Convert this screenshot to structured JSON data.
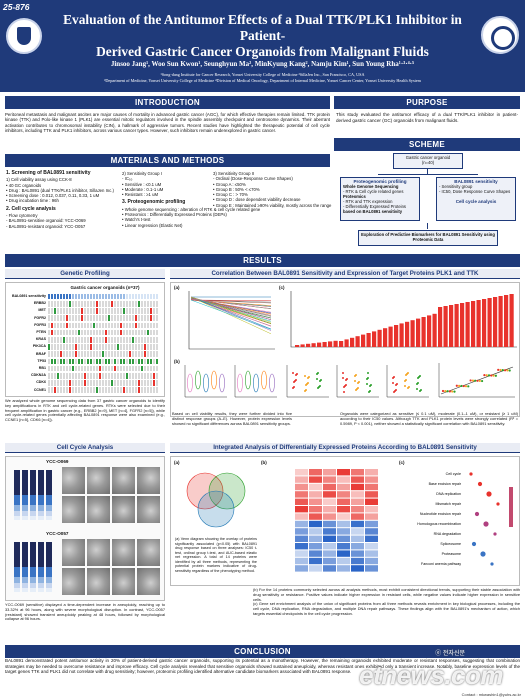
{
  "header": {
    "poster_id": "25-876",
    "title_line1": "Evaluation of the Antitumor Effects of a Dual TTK/PLK1 Inhibitor in Patient-",
    "title_line2": "Derived Gastric Cancer Organoids from Malignant Fluids",
    "authors": "Jinsoo Jang¹, Woo Sun Kwon¹, Seunghyun Ma², MinKyung Kang², Namju Kim¹, Sun Young Rha¹·³·⁴·⁵",
    "affil_line1": "¹Song-dang Institute for Cancer Research, Yonsei University College of Medicine ²SillaJen Inc., San Francisco, CA, USA",
    "affil_line2": "³Department of Medicine, Yonsei University College of Medicine ⁴Division of Medical Oncology, Department of Internal Medicine, Yonsei Cancer Center, Yonsei University Health System"
  },
  "sections": {
    "introduction": "INTRODUCTION",
    "purpose": "PURPOSE",
    "scheme": "SCHEME",
    "methods": "MATERIALS AND METHODS",
    "results": "RESULTS",
    "conclusion": "CONCLUSION"
  },
  "introduction_text": "Peritoneal metastasis and malignant ascites are major causes of mortality in advanced gastric cancer (AGC), for which effective therapies remain limited. TTK protein kinase (TTK) and Polo-like kinase 1 (PLK1) are essential mitotic regulators involved in the spindle assembly checkpoint and centrosome dynamics. Their aberrant activation contributes to chromosomal instability (CIN), a hallmark of aggressive tumors. Recent studies have highlighted the therapeutic potential of cell cycle inhibitors, including TTK and PLK1 inhibitors, across various cancer types. However, such inhibitors remain underexplored in gastric cancer.",
  "purpose_text": "This study evaluated the antitumor efficacy of a dual TTK/PLK1 inhibitor in patient-derived gastric cancer (GC) organoids from malignant fluids.",
  "methods": {
    "col1": [
      {
        "h": "1. Screening of BAL0891 sensitivity"
      },
      {
        "t": "1) Cell viability assay using CCK-8"
      },
      {
        "t": "  • 40 GC organoids"
      },
      {
        "t": "  • Drug : BAL0891 (dual TTK/PLK1 inhibitor, SillaJen Inc.)"
      },
      {
        "t": "  • Screening dose : 0.012, 0.037, 0.11, 0.33, 1 uM"
      },
      {
        "t": "  • Drug incubation time : 96h"
      },
      {
        "h": "2. Cell cycle analysis"
      },
      {
        "t": "  - Flow cytometry"
      },
      {
        "t": "  - BAL0891-sensitive organoid: YCC-O069"
      },
      {
        "t": "  - BAL0891-resistant organoid: YCC-O057"
      }
    ],
    "col2": [
      {
        "t": "2) Sensitivity Group I"
      },
      {
        "t": "  - IC₅₀"
      },
      {
        "t": "    • Sensitive : ≤0.1 uM"
      },
      {
        "t": "    • Moderate : 0.1-1 uM"
      },
      {
        "t": "    • Resistant : ≥1 uM"
      },
      {
        "h": "3. Proteogenomic profiling"
      },
      {
        "t": "  • Whole genome sequencing : alteration of RTK & cell cycle related gene"
      },
      {
        "t": "  • Proteomics : Differentially Expressed Proteins (DEPs)"
      },
      {
        "t": "  • Watch's t-test"
      },
      {
        "t": "  • Linear regression (Elastic Net)"
      }
    ],
    "col3": [
      {
        "t": "3) Sensitivity Group II"
      },
      {
        "t": "  - Ordinal (Dose-Response Curve Shapes)"
      },
      {
        "t": "    • Group A : ≤50%"
      },
      {
        "t": "    • Group B : 50% < ≤70%"
      },
      {
        "t": "    • Group C : > 70%"
      },
      {
        "t": "    • Group D : dose dependent viability decrease"
      },
      {
        "t": "    • Group E : Maintained ≥90% viability, mostly across the range"
      }
    ]
  },
  "scheme": {
    "top_box": "Gastric cancer organoid\n(n=40)",
    "left_title": "Proteogenomic profiling",
    "left_items": [
      "Whole Genome Sequencing",
      "- RTK & Cell cycle related genes",
      "Proteomics",
      "- RTK and TTK expression",
      "- Differentially Expressed Proteins",
      "based on BAL0891 sensitivity"
    ],
    "right_title": "BAL0891 sensitivity",
    "right_items": [
      "- Sensitivity group",
      "- IC50, Dose Response Curve Shapes"
    ],
    "right_sub": "Cell cycle analysis",
    "bottom_box": "Exploration of Predictive Biomarkers for BAL0891 Sensitivity using Proteomic Data"
  },
  "results": {
    "genetic_profiling": "Genetic Profiling",
    "correlation": "Correlation Between BAL0891 Sensitivity and Expression of Target Proteins PLK1 and TTK",
    "cell_cycle": "Cell Cycle Analysis",
    "integrated": "Integrated Analysis of Differentially Expressed Proteins According to BAL0891 Sensitivity",
    "oncoprint_title": "Gastric cancer organoids (n=37)",
    "oncoprint_genes": [
      "BAL0891 sensitivity",
      "ERBB2",
      "MET",
      "FGFR2",
      "FGFR3",
      "PTEN",
      "KRAS",
      "PIK3CA",
      "BRAF",
      "TP53",
      "RB1",
      "CDKN2A",
      "CDK6",
      "CCNE1"
    ],
    "genetic_caption": "We analyzed whole genome sequencing data from 37 gastric cancer organoids to identify key amplifications in RTK and cell cycle-related genes. RTKs were selected due to their frequent amplification in gastric cancer (e.g., ERBB2 [n=9], MET [n=4], FGFR2 [n=5]), while cell cycle-related genes potentially affecting BAL0891 response were also examined (e.g., CCNE1 [n=5], CDK6 [n=4]).",
    "corr_caption_b": "Based on cell viability results, they were further divided into five distinct response groups (A–E). However, protein expression levels showed no significant differences across BAL0891 sensitivity groups.",
    "corr_caption_c": "Organoids were categorized as sensitive (≤ 0.1 uM), moderate (0.1–1 uM), or resistant (≥ 1 uM) according to their IC50 values. Although TTK and PLK1 protein levels were strongly correlated (R² = 0.5989, P < 0.001), neither showed a statistically significant correlation with BAL0891 sensitivity.",
    "panel_labels": [
      "(a)",
      "(b)",
      "(c)",
      "(a)",
      "(b)",
      "(c)"
    ],
    "cc_top": "YCC-O069",
    "cc_bottom": "YCC-O057",
    "cc_caption": "YCC-O069 (sensitive) displayed a time-dependent increase in aneuploidy, reaching up to 33.32% at 96 hours, along with severe morphological disruption. In contrast, YCC-O057 (resistant) showed transient aneuploidy peaking at 48 hours, followed by morphological collapse at 96 hours.",
    "venn_caption": "(a) Venn diagram showing the overlap of proteins significantly associated (p<0.05) with BAL0891 drug response based on three analyses: IC50 t-test, ordinal group t-test, and AUC-based elastic net regression. A total of 14 proteins were identified by all three methods, representing the potential protein markers indicative of drug-sensitivity regardless of the phenotyping method.",
    "integrated_caption": "(b) For the 14 proteins commonly selected across all analysis methods, most exhibit consistent directional trends, supporting their stable association with drug sensitivity or resistance. Positive values indicate higher expression in resistant cells, while negative values indicate higher expression in sensitive cells.\n(c) Gene set enrichment analysis of the union of significant proteins from all three methods reveals enrichment in key biological processes, including the cell cycle, DNA replication, RNA degradation, and multiple DNA repair pathways. These findings align with the BAL0891's mechanism of action, which targets essential checkpoints in the cell cycle progression.",
    "gsea_terms": [
      "Cell cycle",
      "Base excision repair",
      "DNA replication",
      "Mismatch repair",
      "Nucleotide excision repair",
      "Homologous recombination",
      "RNA degradation",
      "Spliceosome",
      "Proteasome",
      "Fanconi anemia pathway"
    ]
  },
  "conclusion_text": "BAL0891 demonstrated potent antitumor activity in 20% of patient-derived gastric cancer organoids, supporting its potential as a monotherapy. However, the remaining organoids exhibited moderate or resistant responses, suggesting that combination strategies may be needed to overcome resistance and improve efficacy. Cell cycle analysis revealed that sensitive organoids showed sustained aneuploidy, whereas resistant ones exhibited only a transient increase. Notably, baseline expression levels of the target genes TTK and PLK1 did not correlate with drug sensitivity; however, proteomic profiling identified alternative candidate biomarkers associated with BAL0891 response.",
  "contact": "Contact : mkwashin1@yuhs.ac.kr",
  "watermark": "etnews.com",
  "watermark_small": "ⓔ 전자신문",
  "colors": {
    "navy": "#1f3a7a",
    "accent_red": "#e8322c",
    "light": "#e9ecf4"
  }
}
